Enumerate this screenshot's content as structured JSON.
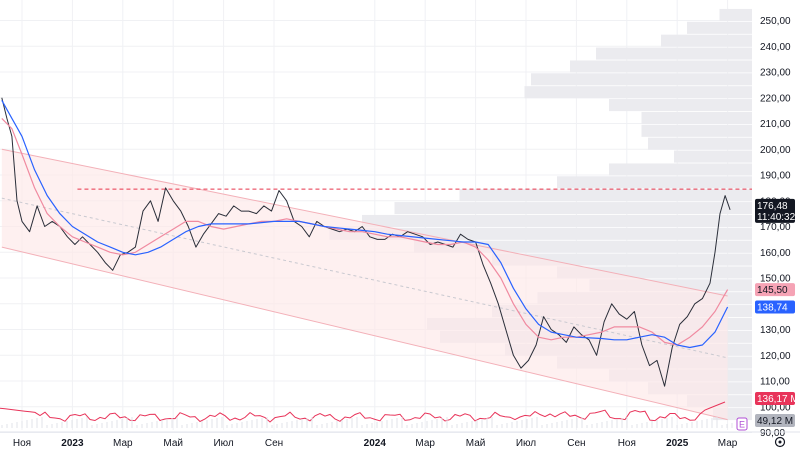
{
  "chart_data": {
    "type": "line",
    "title": "",
    "y_axis": {
      "ticks": [
        "250,00",
        "240,00",
        "230,00",
        "220,00",
        "210,00",
        "200,00",
        "190,00",
        "180,00",
        "170,00",
        "160,00",
        "150,00",
        "140,00",
        "130,00",
        "120,00",
        "110,00",
        "100,00",
        "90,00"
      ],
      "ylim": [
        90,
        255
      ],
      "position": "right"
    },
    "x_axis": {
      "ticks": [
        {
          "label": "Ноя",
          "month": 0,
          "bold": false
        },
        {
          "label": "2023",
          "month": 2,
          "bold": true
        },
        {
          "label": "Мар",
          "month": 4,
          "bold": false
        },
        {
          "label": "Май",
          "month": 6,
          "bold": false
        },
        {
          "label": "Июл",
          "month": 8,
          "bold": false
        },
        {
          "label": "Сен",
          "month": 10,
          "bold": false
        },
        {
          "label": "2024",
          "month": 14,
          "bold": true
        },
        {
          "label": "Мар",
          "month": 16,
          "bold": false
        },
        {
          "label": "Май",
          "month": 18,
          "bold": false
        },
        {
          "label": "Июл",
          "month": 20,
          "bold": false
        },
        {
          "label": "Сен",
          "month": 22,
          "bold": false
        },
        {
          "label": "Ноя",
          "month": 24,
          "bold": false
        },
        {
          "label": "2025",
          "month": 26,
          "bold": true
        },
        {
          "label": "Мар",
          "month": 28,
          "bold": false
        }
      ],
      "settings_icon": "gear-icon"
    },
    "series": [
      {
        "values": [
          [
            -0.8,
            220
          ],
          [
            -0.6,
            212
          ],
          [
            -0.4,
            205
          ],
          [
            -0.2,
            180
          ],
          [
            0,
            172
          ],
          [
            0.3,
            168
          ],
          [
            0.6,
            178
          ],
          [
            0.9,
            170
          ],
          [
            1.2,
            172
          ],
          [
            1.5,
            170
          ],
          [
            1.8,
            166
          ],
          [
            2.1,
            163
          ],
          [
            2.4,
            166
          ],
          [
            2.7,
            163
          ],
          [
            3,
            160
          ],
          [
            3.3,
            156
          ],
          [
            3.6,
            153
          ],
          [
            3.9,
            159
          ],
          [
            4.2,
            160
          ],
          [
            4.5,
            162
          ],
          [
            4.8,
            176
          ],
          [
            5.1,
            180
          ],
          [
            5.4,
            172
          ],
          [
            5.7,
            185
          ],
          [
            6,
            180
          ],
          [
            6.3,
            176
          ],
          [
            6.6,
            170
          ],
          [
            6.9,
            162
          ],
          [
            7.2,
            167
          ],
          [
            7.5,
            171
          ],
          [
            7.8,
            175
          ],
          [
            8.1,
            174
          ],
          [
            8.4,
            178
          ],
          [
            8.7,
            176
          ],
          [
            9,
            176
          ],
          [
            9.3,
            175
          ],
          [
            9.6,
            178
          ],
          [
            9.9,
            176
          ],
          [
            10.2,
            184
          ],
          [
            10.5,
            180
          ],
          [
            10.8,
            172
          ],
          [
            11.1,
            170
          ],
          [
            11.4,
            166
          ],
          [
            11.7,
            172
          ],
          [
            12,
            170
          ],
          [
            12.3,
            169
          ],
          [
            12.6,
            168
          ],
          [
            12.9,
            169
          ],
          [
            13.2,
            168
          ],
          [
            13.5,
            170
          ],
          [
            13.8,
            166
          ],
          [
            14.1,
            165
          ],
          [
            14.4,
            165
          ],
          [
            14.7,
            167
          ],
          [
            15,
            166
          ],
          [
            15.3,
            168
          ],
          [
            15.6,
            167
          ],
          [
            15.9,
            166
          ],
          [
            16.2,
            163
          ],
          [
            16.5,
            164
          ],
          [
            16.8,
            163
          ],
          [
            17.1,
            162
          ],
          [
            17.4,
            167
          ],
          [
            17.7,
            165
          ],
          [
            18,
            164
          ],
          [
            18.3,
            155
          ],
          [
            18.6,
            148
          ],
          [
            18.9,
            140
          ],
          [
            19.2,
            130
          ],
          [
            19.5,
            120
          ],
          [
            19.8,
            115
          ],
          [
            20.1,
            118
          ],
          [
            20.4,
            124
          ],
          [
            20.7,
            135
          ],
          [
            21,
            130
          ],
          [
            21.3,
            128
          ],
          [
            21.6,
            125
          ],
          [
            21.9,
            131
          ],
          [
            22.2,
            128
          ],
          [
            22.5,
            126
          ],
          [
            22.8,
            120
          ],
          [
            23.1,
            133
          ],
          [
            23.4,
            140
          ],
          [
            23.7,
            136
          ],
          [
            24,
            134
          ],
          [
            24.3,
            137
          ],
          [
            24.6,
            124
          ],
          [
            24.9,
            116
          ],
          [
            25.2,
            118
          ],
          [
            25.5,
            108
          ],
          [
            25.8,
            123
          ],
          [
            26.1,
            132
          ],
          [
            26.4,
            135
          ],
          [
            26.7,
            140
          ],
          [
            27,
            142
          ],
          [
            27.3,
            148
          ],
          [
            27.5,
            160
          ],
          [
            27.7,
            175
          ],
          [
            27.9,
            182
          ],
          [
            28.1,
            176.48
          ]
        ]
      },
      {
        "values": [
          [
            -0.8,
            212
          ],
          [
            -0.4,
            208
          ],
          [
            0,
            198
          ],
          [
            0.5,
            185
          ],
          [
            1,
            175
          ],
          [
            1.5,
            170
          ],
          [
            2,
            166
          ],
          [
            2.5,
            164
          ],
          [
            3,
            162
          ],
          [
            3.5,
            160
          ],
          [
            4,
            159
          ],
          [
            4.5,
            160
          ],
          [
            5,
            163
          ],
          [
            5.5,
            166
          ],
          [
            6,
            169
          ],
          [
            6.5,
            172
          ],
          [
            7,
            172
          ],
          [
            7.5,
            170
          ],
          [
            8,
            169
          ],
          [
            8.5,
            170
          ],
          [
            9,
            171
          ],
          [
            9.5,
            172
          ],
          [
            10,
            172
          ],
          [
            10.5,
            173
          ],
          [
            11,
            172
          ],
          [
            11.5,
            171
          ],
          [
            12,
            170
          ],
          [
            12.5,
            169
          ],
          [
            13,
            168
          ],
          [
            13.5,
            168
          ],
          [
            14,
            167
          ],
          [
            14.5,
            166
          ],
          [
            15,
            166
          ],
          [
            15.5,
            165
          ],
          [
            16,
            164
          ],
          [
            16.5,
            163
          ],
          [
            17,
            163
          ],
          [
            17.5,
            164
          ],
          [
            18,
            162
          ],
          [
            18.5,
            157
          ],
          [
            19,
            150
          ],
          [
            19.5,
            140
          ],
          [
            20,
            132
          ],
          [
            20.5,
            127
          ],
          [
            21,
            126
          ],
          [
            21.5,
            127
          ],
          [
            22,
            127
          ],
          [
            22.5,
            128
          ],
          [
            23,
            129
          ],
          [
            23.5,
            131
          ],
          [
            24,
            131
          ],
          [
            24.5,
            131
          ],
          [
            25,
            129
          ],
          [
            25.5,
            125
          ],
          [
            26,
            124
          ],
          [
            26.5,
            127
          ],
          [
            27,
            131
          ],
          [
            27.5,
            137
          ],
          [
            28,
            145.5
          ]
        ]
      },
      {
        "values": [
          [
            -0.8,
            219
          ],
          [
            -0.4,
            212
          ],
          [
            0,
            205
          ],
          [
            0.5,
            192
          ],
          [
            1,
            182
          ],
          [
            1.5,
            175
          ],
          [
            2,
            170
          ],
          [
            2.5,
            167
          ],
          [
            3,
            164
          ],
          [
            3.5,
            162
          ],
          [
            4,
            160
          ],
          [
            4.5,
            159
          ],
          [
            5,
            160
          ],
          [
            5.5,
            162
          ],
          [
            6,
            165
          ],
          [
            6.5,
            168
          ],
          [
            7,
            170
          ],
          [
            7.5,
            171
          ],
          [
            8,
            171
          ],
          [
            8.5,
            171
          ],
          [
            9,
            171
          ],
          [
            9.5,
            171.5
          ],
          [
            10,
            172
          ],
          [
            10.5,
            172
          ],
          [
            11,
            172
          ],
          [
            11.5,
            171
          ],
          [
            12,
            170
          ],
          [
            12.5,
            169.5
          ],
          [
            13,
            169
          ],
          [
            13.5,
            168.5
          ],
          [
            14,
            168
          ],
          [
            14.5,
            167
          ],
          [
            15,
            166.5
          ],
          [
            16,
            165.5
          ],
          [
            17,
            164.5
          ],
          [
            17.5,
            164
          ],
          [
            18,
            164
          ],
          [
            18.5,
            163
          ],
          [
            19,
            156
          ],
          [
            19.5,
            146
          ],
          [
            20,
            138
          ],
          [
            20.5,
            132
          ],
          [
            21,
            129
          ],
          [
            21.5,
            128
          ],
          [
            22,
            127
          ],
          [
            23,
            126.5
          ],
          [
            23.5,
            126
          ],
          [
            24,
            126
          ],
          [
            24.5,
            127
          ],
          [
            25,
            128
          ],
          [
            25.5,
            127
          ],
          [
            26,
            124
          ],
          [
            26.5,
            123
          ],
          [
            27,
            124
          ],
          [
            27.5,
            129
          ],
          [
            28,
            138.74
          ]
        ]
      }
    ],
    "resistance_level": 184.5,
    "channel": {
      "upper": [
        [
          -0.8,
          200
        ],
        [
          28,
          143
        ]
      ],
      "lower": [
        [
          -0.8,
          162
        ],
        [
          28,
          95
        ]
      ]
    },
    "price_labels": {
      "last_price": "176,48",
      "countdown": "11:40:32",
      "ma_slow": "145,50",
      "ma_fast": "138,74",
      "volume_1": "136,17 M",
      "volume_2": "49,12 M"
    },
    "event_marker": "E",
    "colors": {
      "price": "#2a2e39",
      "ma_slow": "#f08aa0",
      "ma_fast": "#2962ff",
      "resistance": "#e8334a",
      "channel_fill": "#fde8e8",
      "channel_line": "#f3b0b8",
      "volume_profile": "#ebebef",
      "volume_line": "#e8345a",
      "badge_dark": "#131722",
      "badge_pink": "#f5a3b5",
      "badge_blue": "#2962ff",
      "badge_red": "#e8345a",
      "badge_grey": "#b2b5be",
      "event_marker": "#b04fd6"
    },
    "grid": true
  }
}
